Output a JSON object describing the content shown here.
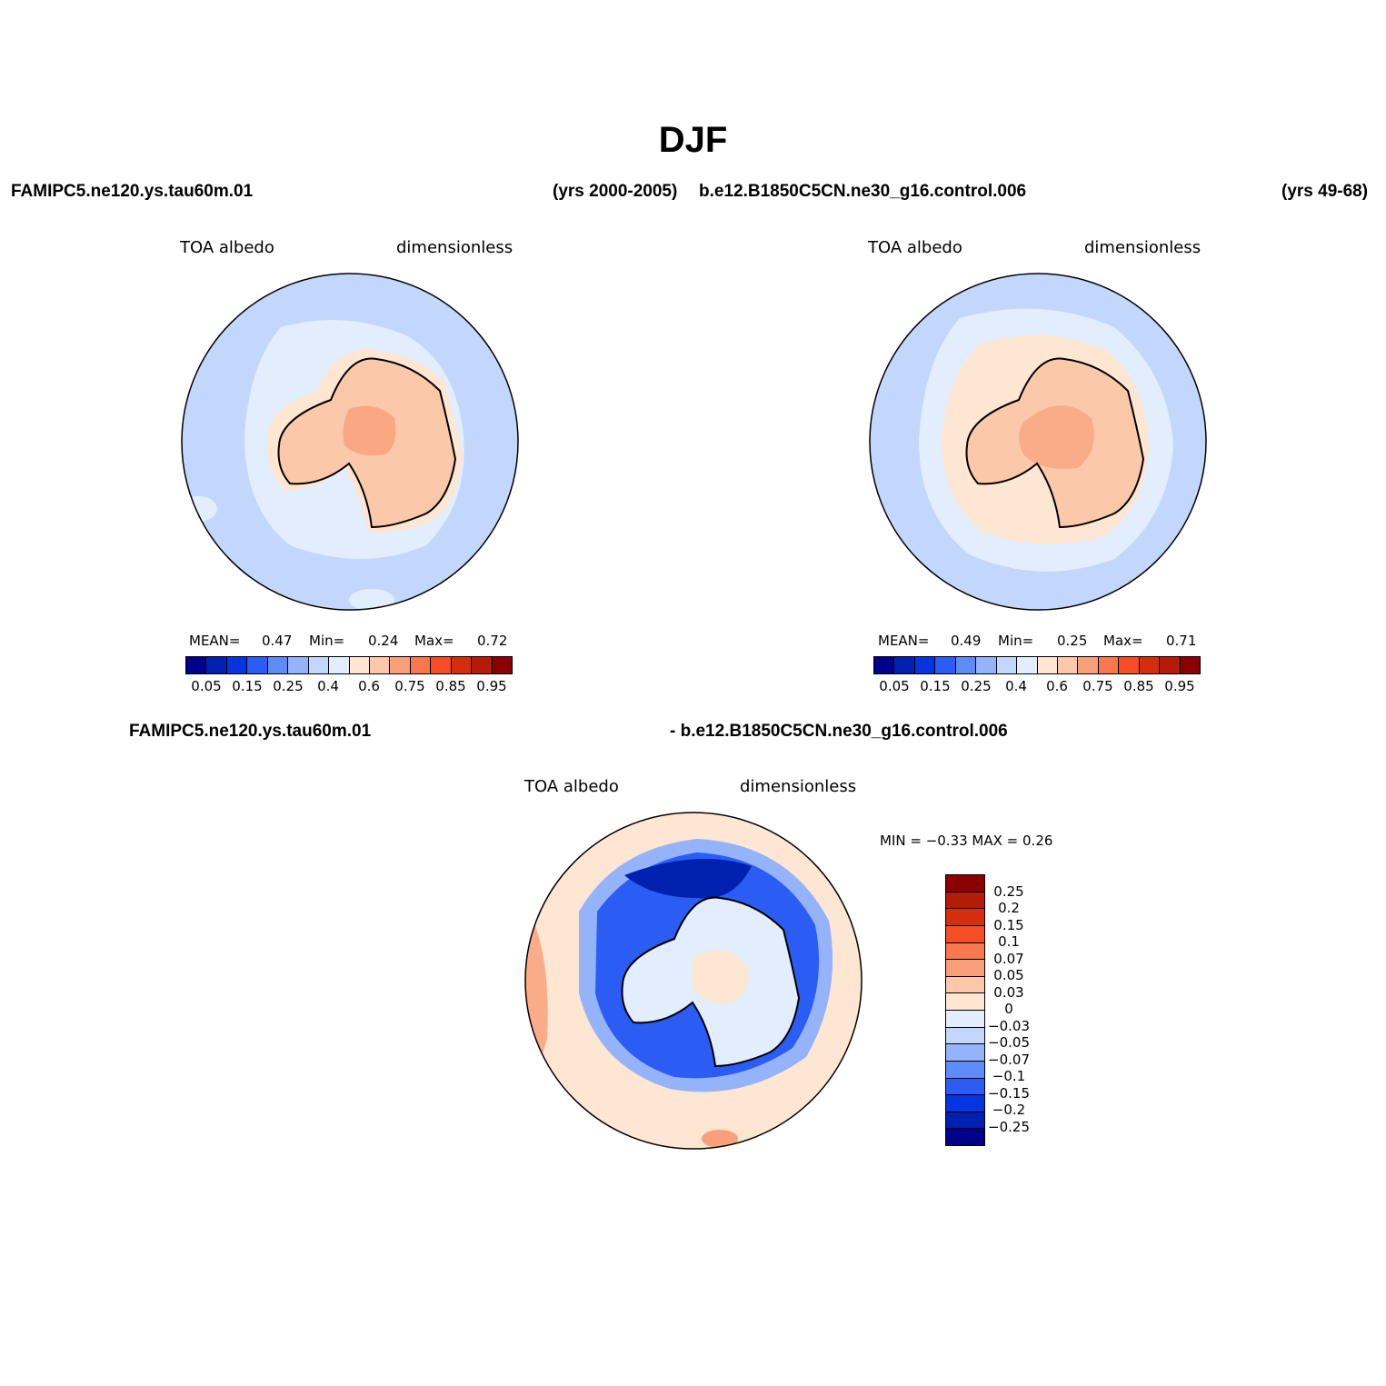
{
  "title": "DJF",
  "header": {
    "left_case": "FAMIPC5.ne120.ys.tau60m.01",
    "left_years": "(yrs 2000-2005)",
    "right_case": "b.e12.B1850C5CN.ne30_g16.control.006",
    "right_years": "(yrs 49-68)"
  },
  "panels": [
    {
      "variable": "TOA  albedo",
      "units": "dimensionless",
      "stats": {
        "mean_label": "MEAN=",
        "mean": "0.47",
        "min_label": "Min=",
        "min": "0.24",
        "max_label": "Max=",
        "max": "0.72"
      }
    },
    {
      "variable": "TOA  albedo",
      "units": "dimensionless",
      "stats": {
        "mean_label": "MEAN=",
        "mean": "0.49",
        "min_label": "Min=",
        "min": "0.25",
        "max_label": "Max=",
        "max": "0.71"
      }
    }
  ],
  "colorbar": {
    "colors": [
      "#00008b",
      "#0020b0",
      "#0535e0",
      "#2b5df5",
      "#5f8bf7",
      "#94b3fa",
      "#c3d7fc",
      "#e2edfd",
      "#fde6d2",
      "#fcc8aa",
      "#f9a07a",
      "#f7784e",
      "#f54d25",
      "#d52e0e",
      "#b31c06",
      "#8b0000"
    ],
    "tick_labels": [
      "0.05",
      "0.15",
      "0.25",
      "0.4",
      "0.6",
      "0.75",
      "0.85",
      "0.95"
    ]
  },
  "diff": {
    "header_left": "FAMIPC5.ne120.ys.tau60m.01",
    "header_right": "- b.e12.B1850C5CN.ne30_g16.control.006",
    "variable": "TOA  albedo",
    "units": "dimensionless",
    "minmax": "MIN =   −0.33  MAX =    0.26",
    "colors": [
      "#8b0000",
      "#b31c06",
      "#d52e0e",
      "#f54d25",
      "#f7784e",
      "#f9a07a",
      "#fcc8aa",
      "#fde6d2",
      "#e2edfd",
      "#c3d7fc",
      "#94b3fa",
      "#5f8bf7",
      "#2b5df5",
      "#0535e0",
      "#0020b0",
      "#00008b"
    ],
    "tick_labels": [
      "0.25",
      "0.2",
      "0.15",
      "0.1",
      "0.07",
      "0.05",
      "0.03",
      "0",
      "−0.03",
      "−0.05",
      "−0.07",
      "−0.1",
      "−0.15",
      "−0.2",
      "−0.25"
    ]
  }
}
